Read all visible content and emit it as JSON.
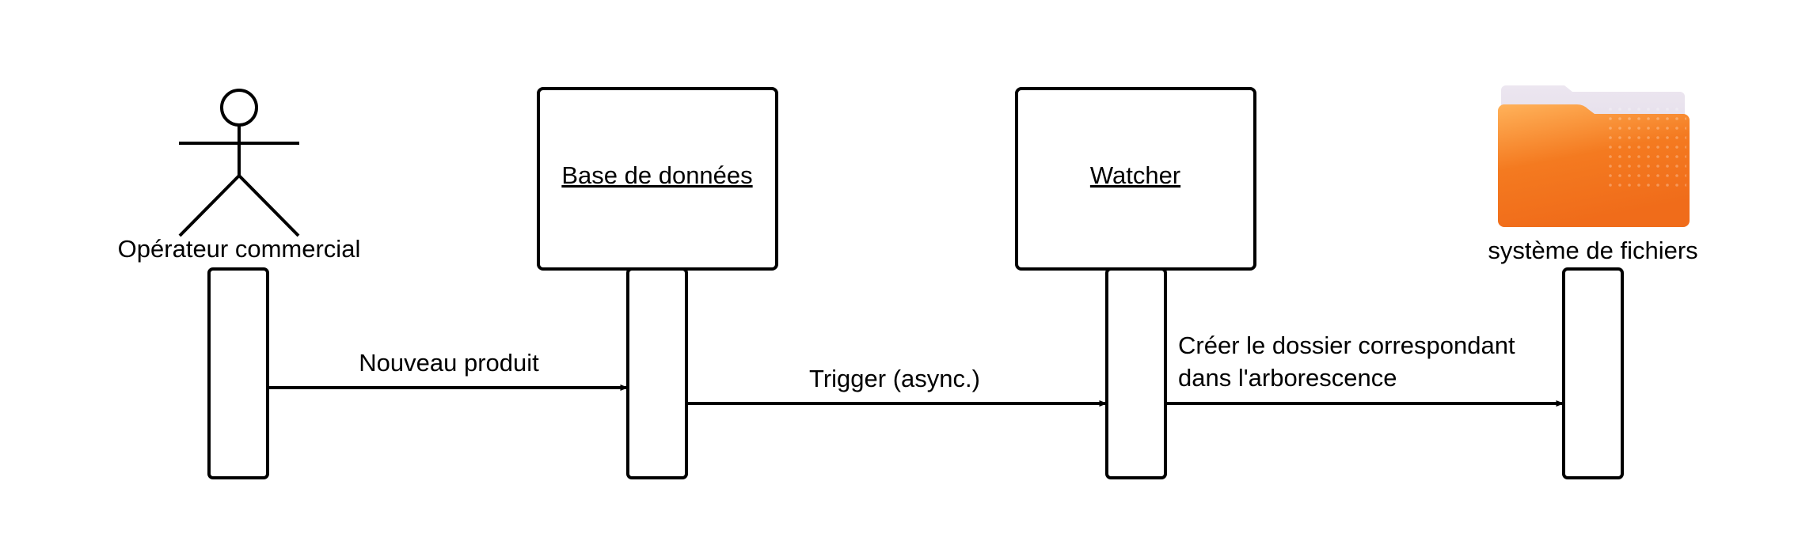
{
  "participants": [
    {
      "id": "operator",
      "label": "Opérateur commercial",
      "kind": "actor",
      "icon": "stick-figure-icon"
    },
    {
      "id": "database",
      "label": "Base de données",
      "kind": "object"
    },
    {
      "id": "watcher",
      "label": "Watcher",
      "kind": "object"
    },
    {
      "id": "filesystem",
      "label": "système de fichiers",
      "kind": "icon",
      "icon": "folder-icon",
      "icon_color": "#f47a20"
    }
  ],
  "messages": [
    {
      "from": "operator",
      "to": "database",
      "lines": [
        "Nouveau produit"
      ]
    },
    {
      "from": "database",
      "to": "watcher",
      "lines": [
        "Trigger (async.)"
      ]
    },
    {
      "from": "watcher",
      "to": "filesystem",
      "lines": [
        "Créer le dossier correspondant",
        "dans l'arborescence"
      ]
    }
  ]
}
